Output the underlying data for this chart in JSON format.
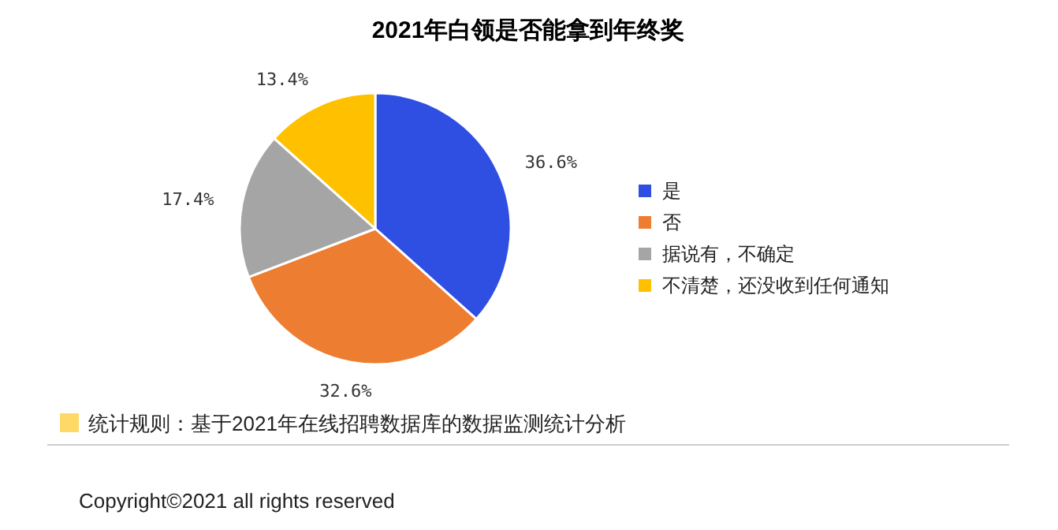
{
  "chart_data": {
    "type": "pie",
    "title": "2021年白领是否能拿到年终奖",
    "categories": [
      "是",
      "否",
      "据说有，不确定",
      "不清楚，还没收到任何通知"
    ],
    "values": [
      36.6,
      32.6,
      17.4,
      13.4
    ],
    "value_labels": [
      "36.6%",
      "32.6%",
      "17.4%",
      "13.4%"
    ],
    "colors": [
      "#2f4fe3",
      "#ed7d31",
      "#a5a5a5",
      "#ffc000"
    ],
    "legend": "right",
    "annotations": [
      "统计规则：基于2021年在线招聘数据库的数据监测统计分析",
      "Copyright©2021 all rights reserved"
    ]
  }
}
